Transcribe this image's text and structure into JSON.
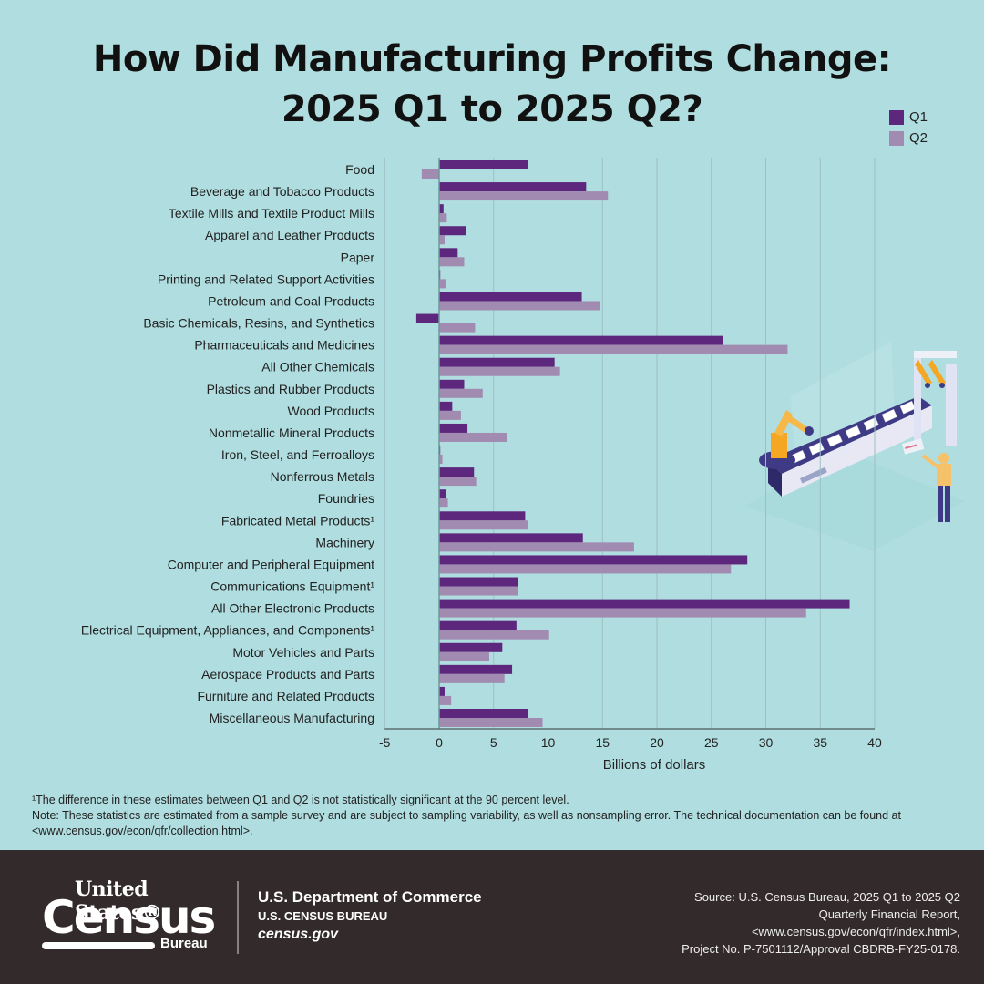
{
  "title_lines": [
    "How Did Manufacturing Profits Change:",
    "2025 Q1 to 2025 Q2?"
  ],
  "legend": [
    {
      "label": "Q1",
      "color": "#5d277d"
    },
    {
      "label": "Q2",
      "color": "#a28bb1"
    }
  ],
  "chart_data": {
    "type": "bar",
    "orientation": "horizontal",
    "title": "How Did Manufacturing Profits Change: 2025 Q1 to 2025 Q2?",
    "xlabel": "Billions of dollars",
    "ylabel": "",
    "xlim": [
      -5,
      40
    ],
    "xticks": [
      -5,
      0,
      5,
      10,
      15,
      20,
      25,
      30,
      35,
      40
    ],
    "grid": true,
    "legend_position": "top-right",
    "categories": [
      "Food",
      "Beverage and Tobacco Products",
      "Textile Mills and Textile Product Mills",
      "Apparel and Leather Products",
      "Paper",
      "Printing and Related Support Activities",
      "Petroleum and Coal Products",
      "Basic Chemicals, Resins, and Synthetics",
      "Pharmaceuticals and Medicines",
      "All Other Chemicals",
      "Plastics and Rubber Products",
      "Wood Products",
      "Nonmetallic Mineral Products",
      "Iron, Steel, and Ferroalloys",
      "Nonferrous Metals",
      "Foundries",
      "Fabricated Metal Products¹",
      "Machinery",
      "Computer and Peripheral Equipment",
      "Communications Equipment¹",
      "All Other Electronic Products",
      "Electrical Equipment, Appliances, and Components¹",
      "Motor Vehicles and Parts",
      "Aerospace Products and Parts",
      "Furniture and Related Products",
      "Miscellaneous Manufacturing"
    ],
    "series": [
      {
        "name": "Q1",
        "color": "#5d277d",
        "values": [
          8.2,
          13.5,
          0.4,
          2.5,
          1.7,
          0.1,
          13.1,
          -2.1,
          26.1,
          10.6,
          2.3,
          1.2,
          2.6,
          0.1,
          3.2,
          0.6,
          7.9,
          13.2,
          28.3,
          7.2,
          37.7,
          7.1,
          5.8,
          6.7,
          0.5,
          8.2
        ]
      },
      {
        "name": "Q2",
        "color": "#a28bb1",
        "values": [
          -1.6,
          15.5,
          0.7,
          0.5,
          2.3,
          0.6,
          14.8,
          3.3,
          32.0,
          11.1,
          4.0,
          2.0,
          6.2,
          0.3,
          3.4,
          0.8,
          8.2,
          17.9,
          26.8,
          7.2,
          33.7,
          10.1,
          4.6,
          6.0,
          1.1,
          9.5
        ]
      }
    ]
  },
  "notes": {
    "footnote": "¹The difference in these estimates between Q1 and Q2 is not statistically significant at the 90 percent level.",
    "note": "Note: These statistics are estimated from a sample survey and are subject to sampling variability, as well as nonsampling error. The technical documentation can be found at <www.census.gov/econ/qfr/collection.html>."
  },
  "footer": {
    "logo_top": "United States®",
    "logo_main": "Census",
    "logo_sub": "Bureau",
    "dept": "U.S. Department of Commerce",
    "bureau": "U.S. CENSUS BUREAU",
    "site": "census.gov",
    "source_lines": [
      "Source: U.S. Census Bureau, 2025 Q1 to 2025 Q2",
      "Quarterly Financial Report,",
      "<www.census.gov/econ/qfr/index.html>,",
      "Project No. P-7501112/Approval CBDRB-FY25-0178."
    ]
  },
  "colors": {
    "background": "#b0dddf",
    "q1": "#5d277d",
    "q2": "#a28bb1",
    "footer": "#332b2b"
  }
}
